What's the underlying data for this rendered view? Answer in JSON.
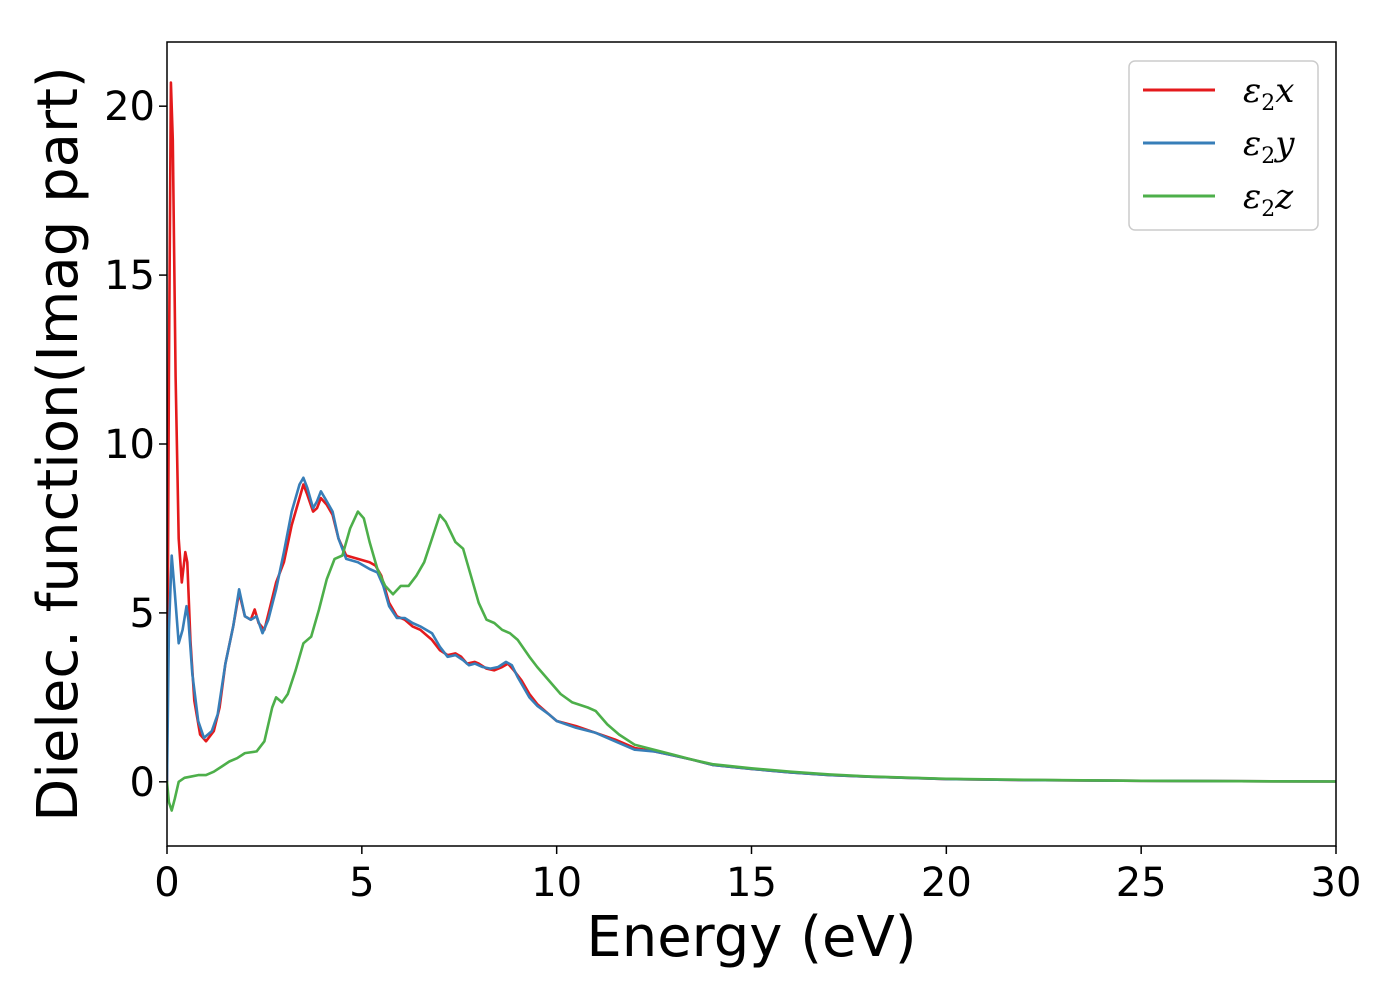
{
  "chart_data": {
    "type": "line",
    "xlabel": "Energy (eV)",
    "ylabel": "Dielec. function(Imag part)",
    "xlim": [
      0,
      30
    ],
    "ylim": [
      -1.9,
      21.9
    ],
    "xticks": [
      0,
      5,
      10,
      15,
      20,
      25,
      30
    ],
    "yticks": [
      0,
      5,
      10,
      15,
      20
    ],
    "xtick_labels": [
      "0",
      "5",
      "10",
      "15",
      "20",
      "25",
      "30"
    ],
    "ytick_labels": [
      "0",
      "5",
      "10",
      "15",
      "20"
    ],
    "grid": false,
    "legend_position": "top-right",
    "series": [
      {
        "name": "ε₂x",
        "legend_base": "ε",
        "legend_sub": "2",
        "legend_tail": "x",
        "color": "#e41a1c",
        "points": [
          [
            0,
            0
          ],
          [
            0.05,
            12
          ],
          [
            0.1,
            20.7
          ],
          [
            0.15,
            19
          ],
          [
            0.22,
            12
          ],
          [
            0.3,
            7.2
          ],
          [
            0.38,
            5.9
          ],
          [
            0.47,
            6.8
          ],
          [
            0.52,
            6.5
          ],
          [
            0.6,
            4.2
          ],
          [
            0.7,
            2.4
          ],
          [
            0.85,
            1.4
          ],
          [
            1.0,
            1.2
          ],
          [
            1.2,
            1.5
          ],
          [
            1.35,
            2.2
          ],
          [
            1.5,
            3.5
          ],
          [
            1.7,
            4.6
          ],
          [
            1.85,
            5.6
          ],
          [
            2.0,
            4.9
          ],
          [
            2.15,
            4.8
          ],
          [
            2.25,
            5.1
          ],
          [
            2.35,
            4.7
          ],
          [
            2.5,
            4.5
          ],
          [
            2.65,
            5.2
          ],
          [
            2.8,
            5.9
          ],
          [
            3.0,
            6.5
          ],
          [
            3.2,
            7.6
          ],
          [
            3.4,
            8.4
          ],
          [
            3.5,
            8.8
          ],
          [
            3.6,
            8.5
          ],
          [
            3.75,
            8.0
          ],
          [
            3.85,
            8.1
          ],
          [
            3.95,
            8.4
          ],
          [
            4.1,
            8.2
          ],
          [
            4.25,
            7.9
          ],
          [
            4.4,
            7.2
          ],
          [
            4.6,
            6.7
          ],
          [
            4.9,
            6.6
          ],
          [
            5.2,
            6.5
          ],
          [
            5.35,
            6.4
          ],
          [
            5.5,
            6.1
          ],
          [
            5.7,
            5.3
          ],
          [
            5.9,
            4.9
          ],
          [
            6.1,
            4.8
          ],
          [
            6.3,
            4.6
          ],
          [
            6.5,
            4.5
          ],
          [
            6.8,
            4.2
          ],
          [
            7.0,
            3.9
          ],
          [
            7.2,
            3.75
          ],
          [
            7.4,
            3.8
          ],
          [
            7.55,
            3.7
          ],
          [
            7.7,
            3.5
          ],
          [
            7.9,
            3.55
          ],
          [
            8.0,
            3.5
          ],
          [
            8.2,
            3.35
          ],
          [
            8.4,
            3.3
          ],
          [
            8.6,
            3.4
          ],
          [
            8.75,
            3.5
          ],
          [
            8.9,
            3.3
          ],
          [
            9.1,
            3.0
          ],
          [
            9.3,
            2.6
          ],
          [
            9.5,
            2.3
          ],
          [
            9.8,
            2.0
          ],
          [
            10.0,
            1.8
          ],
          [
            10.5,
            1.65
          ],
          [
            11.0,
            1.45
          ],
          [
            11.5,
            1.25
          ],
          [
            12.0,
            1.0
          ],
          [
            12.5,
            0.9
          ],
          [
            13.0,
            0.78
          ],
          [
            13.5,
            0.65
          ],
          [
            14.0,
            0.5
          ],
          [
            15.0,
            0.38
          ],
          [
            16.0,
            0.28
          ],
          [
            17.0,
            0.2
          ],
          [
            18.0,
            0.15
          ],
          [
            20.0,
            0.08
          ],
          [
            22.0,
            0.05
          ],
          [
            25.0,
            0.03
          ],
          [
            30.0,
            0.01
          ]
        ]
      },
      {
        "name": "ε₂y",
        "legend_base": "ε",
        "legend_sub": "2",
        "legend_tail": "y",
        "color": "#377eb8",
        "points": [
          [
            0,
            0
          ],
          [
            0.05,
            4.5
          ],
          [
            0.12,
            6.7
          ],
          [
            0.2,
            5.6
          ],
          [
            0.3,
            4.1
          ],
          [
            0.4,
            4.5
          ],
          [
            0.5,
            5.2
          ],
          [
            0.55,
            4.8
          ],
          [
            0.65,
            3.2
          ],
          [
            0.8,
            1.8
          ],
          [
            0.95,
            1.3
          ],
          [
            1.15,
            1.5
          ],
          [
            1.3,
            2.0
          ],
          [
            1.5,
            3.5
          ],
          [
            1.7,
            4.6
          ],
          [
            1.85,
            5.7
          ],
          [
            2.0,
            4.9
          ],
          [
            2.15,
            4.8
          ],
          [
            2.3,
            4.9
          ],
          [
            2.45,
            4.4
          ],
          [
            2.6,
            4.8
          ],
          [
            2.8,
            5.7
          ],
          [
            3.0,
            6.8
          ],
          [
            3.2,
            8.0
          ],
          [
            3.4,
            8.8
          ],
          [
            3.5,
            9.0
          ],
          [
            3.6,
            8.7
          ],
          [
            3.75,
            8.1
          ],
          [
            3.85,
            8.3
          ],
          [
            3.95,
            8.6
          ],
          [
            4.1,
            8.3
          ],
          [
            4.25,
            8.0
          ],
          [
            4.4,
            7.2
          ],
          [
            4.6,
            6.6
          ],
          [
            4.9,
            6.5
          ],
          [
            5.2,
            6.3
          ],
          [
            5.4,
            6.2
          ],
          [
            5.55,
            5.8
          ],
          [
            5.7,
            5.2
          ],
          [
            5.9,
            4.85
          ],
          [
            6.1,
            4.85
          ],
          [
            6.3,
            4.7
          ],
          [
            6.5,
            4.6
          ],
          [
            6.8,
            4.4
          ],
          [
            7.0,
            4.0
          ],
          [
            7.2,
            3.7
          ],
          [
            7.4,
            3.75
          ],
          [
            7.6,
            3.6
          ],
          [
            7.75,
            3.45
          ],
          [
            7.9,
            3.5
          ],
          [
            8.1,
            3.4
          ],
          [
            8.3,
            3.35
          ],
          [
            8.5,
            3.4
          ],
          [
            8.7,
            3.55
          ],
          [
            8.85,
            3.45
          ],
          [
            9.0,
            3.1
          ],
          [
            9.3,
            2.5
          ],
          [
            9.5,
            2.25
          ],
          [
            9.8,
            2.0
          ],
          [
            10.0,
            1.8
          ],
          [
            10.5,
            1.6
          ],
          [
            11.0,
            1.45
          ],
          [
            11.5,
            1.2
          ],
          [
            12.0,
            0.95
          ],
          [
            12.5,
            0.9
          ],
          [
            13.0,
            0.78
          ],
          [
            13.5,
            0.65
          ],
          [
            14.0,
            0.5
          ],
          [
            15.0,
            0.38
          ],
          [
            16.0,
            0.28
          ],
          [
            17.0,
            0.2
          ],
          [
            18.0,
            0.15
          ],
          [
            20.0,
            0.08
          ],
          [
            22.0,
            0.05
          ],
          [
            25.0,
            0.03
          ],
          [
            30.0,
            0.01
          ]
        ]
      },
      {
        "name": "ε₂z",
        "legend_base": "ε",
        "legend_sub": "2",
        "legend_tail": "z",
        "color": "#4daf4a",
        "points": [
          [
            0,
            0
          ],
          [
            0.05,
            -0.6
          ],
          [
            0.12,
            -0.85
          ],
          [
            0.2,
            -0.5
          ],
          [
            0.3,
            0.0
          ],
          [
            0.45,
            0.12
          ],
          [
            0.6,
            0.15
          ],
          [
            0.8,
            0.2
          ],
          [
            1.0,
            0.2
          ],
          [
            1.2,
            0.3
          ],
          [
            1.4,
            0.45
          ],
          [
            1.6,
            0.6
          ],
          [
            1.8,
            0.7
          ],
          [
            2.0,
            0.85
          ],
          [
            2.3,
            0.9
          ],
          [
            2.5,
            1.2
          ],
          [
            2.7,
            2.2
          ],
          [
            2.8,
            2.5
          ],
          [
            2.95,
            2.35
          ],
          [
            3.1,
            2.6
          ],
          [
            3.3,
            3.3
          ],
          [
            3.5,
            4.1
          ],
          [
            3.7,
            4.3
          ],
          [
            3.9,
            5.1
          ],
          [
            4.1,
            6.0
          ],
          [
            4.3,
            6.6
          ],
          [
            4.5,
            6.7
          ],
          [
            4.7,
            7.5
          ],
          [
            4.9,
            8.0
          ],
          [
            5.05,
            7.8
          ],
          [
            5.2,
            7.1
          ],
          [
            5.4,
            6.3
          ],
          [
            5.6,
            5.8
          ],
          [
            5.8,
            5.55
          ],
          [
            6.0,
            5.8
          ],
          [
            6.2,
            5.8
          ],
          [
            6.4,
            6.1
          ],
          [
            6.6,
            6.5
          ],
          [
            6.8,
            7.2
          ],
          [
            7.0,
            7.9
          ],
          [
            7.15,
            7.7
          ],
          [
            7.4,
            7.1
          ],
          [
            7.6,
            6.9
          ],
          [
            7.8,
            6.1
          ],
          [
            8.0,
            5.3
          ],
          [
            8.2,
            4.8
          ],
          [
            8.4,
            4.7
          ],
          [
            8.6,
            4.5
          ],
          [
            8.8,
            4.4
          ],
          [
            9.0,
            4.2
          ],
          [
            9.3,
            3.7
          ],
          [
            9.5,
            3.4
          ],
          [
            9.8,
            3.0
          ],
          [
            10.1,
            2.6
          ],
          [
            10.4,
            2.35
          ],
          [
            10.8,
            2.2
          ],
          [
            11.0,
            2.1
          ],
          [
            11.3,
            1.7
          ],
          [
            11.6,
            1.4
          ],
          [
            12.0,
            1.1
          ],
          [
            12.5,
            0.95
          ],
          [
            13.0,
            0.8
          ],
          [
            13.5,
            0.65
          ],
          [
            14.0,
            0.52
          ],
          [
            15.0,
            0.4
          ],
          [
            16.0,
            0.3
          ],
          [
            17.0,
            0.22
          ],
          [
            18.0,
            0.16
          ],
          [
            20.0,
            0.09
          ],
          [
            22.0,
            0.06
          ],
          [
            25.0,
            0.03
          ],
          [
            30.0,
            0.01
          ]
        ]
      }
    ]
  }
}
